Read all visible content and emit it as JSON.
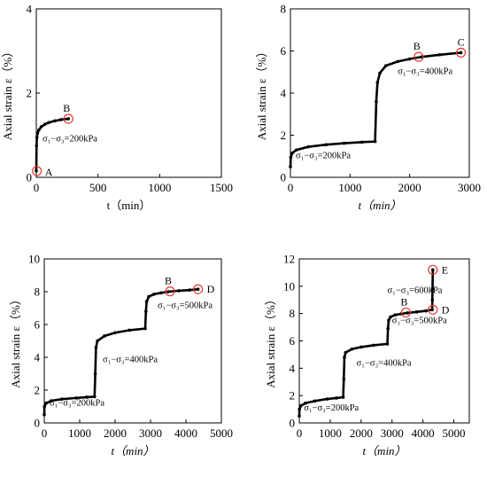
{
  "chart_data": [
    {
      "type": "line",
      "ylabel": "Axial strain ε（%）",
      "xlabel": "t（min）",
      "xlim": [
        0,
        1500
      ],
      "ylim": [
        0,
        4
      ],
      "xticks": [
        0,
        500,
        1000,
        1500
      ],
      "yticks": [
        0,
        2,
        4
      ],
      "series": [
        {
          "x": [
            0,
            2,
            5,
            10,
            20,
            40,
            70,
            100,
            150,
            200,
            260
          ],
          "y": [
            0.15,
            0.75,
            0.95,
            1.05,
            1.12,
            1.2,
            1.26,
            1.3,
            1.34,
            1.37,
            1.39
          ]
        }
      ],
      "points": [
        {
          "label": "A",
          "x": 5,
          "y": 0.15
        },
        {
          "label": "B",
          "x": 260,
          "y": 1.39
        }
      ],
      "annotations": [
        {
          "text": "σ₁−σ₃=200kPa",
          "x": 50,
          "y": 0.85
        }
      ]
    },
    {
      "type": "line",
      "ylabel": "Axial strain ε（%）",
      "xlabel": "t（min）",
      "xlim": [
        0,
        3000
      ],
      "ylim": [
        0,
        8
      ],
      "xticks": [
        0,
        1000,
        2000,
        3000
      ],
      "yticks": [
        0,
        2,
        4,
        6,
        8
      ],
      "series": [
        {
          "x": [
            0,
            5,
            30,
            100,
            300,
            600,
            900,
            1200,
            1420,
            1440,
            1460,
            1500,
            1600,
            1800,
            2000,
            2200,
            2500,
            2860
          ],
          "y": [
            0.5,
            0.95,
            1.15,
            1.3,
            1.45,
            1.55,
            1.62,
            1.67,
            1.7,
            3.6,
            4.5,
            4.95,
            5.3,
            5.5,
            5.62,
            5.72,
            5.82,
            5.92
          ]
        }
      ],
      "points": [
        {
          "label": "B",
          "x": 2150,
          "y": 5.72
        },
        {
          "label": "C",
          "x": 2860,
          "y": 5.92
        }
      ],
      "annotations": [
        {
          "text": "σ₁−σ₃=200kPa",
          "x": 90,
          "y": 0.9
        },
        {
          "text": "σ₁−σ₃=400kPa",
          "x": 1800,
          "y": 4.9
        }
      ]
    },
    {
      "type": "line",
      "ylabel": "Axial strain ε（%）",
      "xlabel": "t（min）",
      "xlim": [
        0,
        5000
      ],
      "ylim": [
        0,
        10
      ],
      "xticks": [
        0,
        1000,
        2000,
        3000,
        4000,
        5000
      ],
      "yticks": [
        0,
        2,
        4,
        6,
        8,
        10
      ],
      "series": [
        {
          "x": [
            0,
            5,
            50,
            200,
            500,
            900,
            1200,
            1420,
            1440,
            1460,
            1500,
            1700,
            2000,
            2400,
            2850,
            2870,
            2890,
            2950,
            3100,
            3300,
            3500,
            3800,
            4100,
            4340
          ],
          "y": [
            0.5,
            1.0,
            1.2,
            1.35,
            1.45,
            1.52,
            1.57,
            1.6,
            3.0,
            4.6,
            5.0,
            5.3,
            5.5,
            5.65,
            5.75,
            6.8,
            7.4,
            7.7,
            7.85,
            7.93,
            8.0,
            8.06,
            8.1,
            8.15
          ]
        }
      ],
      "points": [
        {
          "label": "B",
          "x": 3550,
          "y": 8.02
        },
        {
          "label": "D",
          "x": 4340,
          "y": 8.15
        }
      ],
      "annotations": [
        {
          "text": "σ₁−σ₃=200kPa",
          "x": 150,
          "y": 1.05
        },
        {
          "text": "σ₁−σ₃=400kPa",
          "x": 1650,
          "y": 3.7
        },
        {
          "text": "σ₁−σ₃=500kPa",
          "x": 3200,
          "y": 7.0
        }
      ]
    },
    {
      "type": "line",
      "ylabel": "Axial strain ε（%）",
      "xlabel": "t（min）",
      "xlim": [
        0,
        5500
      ],
      "ylim": [
        0,
        12
      ],
      "xticks": [
        0,
        1000,
        2000,
        3000,
        4000,
        5000
      ],
      "yticks": [
        0,
        2,
        4,
        6,
        8,
        10,
        12
      ],
      "series": [
        {
          "x": [
            0,
            5,
            50,
            200,
            500,
            900,
            1200,
            1420,
            1440,
            1460,
            1500,
            1700,
            2000,
            2400,
            2850,
            2870,
            2890,
            2950,
            3100,
            3300,
            3500,
            3800,
            4100,
            4300,
            4305,
            4310,
            4320
          ],
          "y": [
            0.5,
            1.0,
            1.25,
            1.45,
            1.6,
            1.75,
            1.82,
            1.88,
            3.2,
            4.8,
            5.15,
            5.4,
            5.55,
            5.68,
            5.78,
            6.9,
            7.5,
            7.75,
            7.9,
            7.98,
            8.05,
            8.12,
            8.2,
            8.28,
            9.0,
            9.8,
            11.2
          ]
        }
      ],
      "points": [
        {
          "label": "B",
          "x": 3450,
          "y": 8.08
        },
        {
          "label": "D",
          "x": 4320,
          "y": 8.28
        },
        {
          "label": "E",
          "x": 4320,
          "y": 11.2
        }
      ],
      "annotations": [
        {
          "text": "σ₁−σ₃=200kPa",
          "x": 150,
          "y": 0.9
        },
        {
          "text": "σ₁−σ₃=400kPa",
          "x": 1850,
          "y": 4.2
        },
        {
          "text": "σ₁−σ₃=500kPa",
          "x": 3000,
          "y": 7.3
        },
        {
          "text": "σ₁−σ₃=600kPa",
          "x": 2850,
          "y": 9.5
        }
      ]
    }
  ]
}
